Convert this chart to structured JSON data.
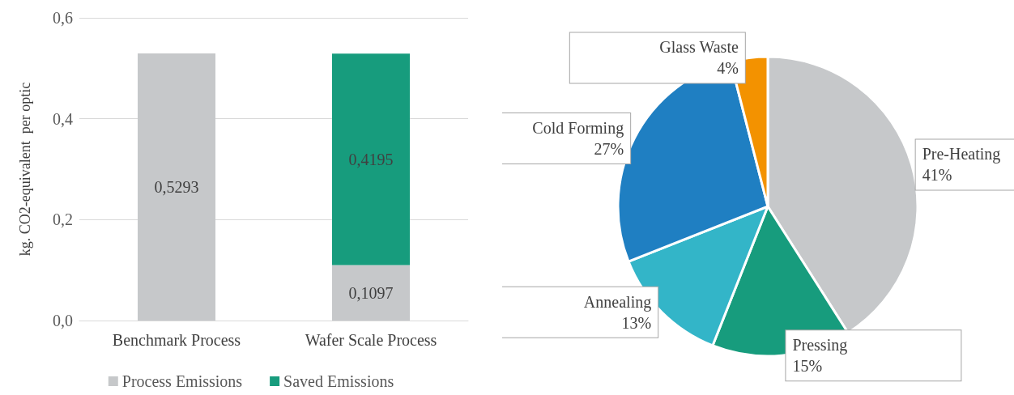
{
  "chart_data": [
    {
      "type": "bar",
      "stacked": true,
      "categories": [
        "Benchmark Process",
        "Wafer Scale Process"
      ],
      "ylabel": "kg. CO2-equivalent  per optic",
      "ylim": [
        0,
        0.6
      ],
      "yticks": [
        {
          "value": 0,
          "label": "0,0"
        },
        {
          "value": 0.2,
          "label": "0,2"
        },
        {
          "value": 0.4,
          "label": "0,4"
        },
        {
          "value": 0.6,
          "label": "0,6"
        }
      ],
      "grid": "y",
      "legend": "bottom",
      "series": [
        {
          "name": "Process Emissions",
          "color": "#c6c8ca",
          "values": [
            0.5293,
            0.1097
          ],
          "value_labels": [
            "0,5293",
            "0,1097"
          ]
        },
        {
          "name": "Saved Emissions",
          "color": "#179c7d",
          "values": [
            null,
            0.4195
          ],
          "value_labels": [
            null,
            "0,4195"
          ]
        }
      ]
    },
    {
      "type": "pie",
      "categories": [
        "Pre-Heating",
        "Pressing",
        "Annealing",
        "Cold Forming",
        "Glass Waste"
      ],
      "values": [
        41,
        15,
        13,
        27,
        4
      ],
      "colors": [
        "#c6c8ca",
        "#179c7d",
        "#33b5c8",
        "#1f7fc2",
        "#f39200"
      ],
      "value_labels": [
        "41%",
        "15%",
        "13%",
        "27%",
        "4%"
      ]
    }
  ]
}
